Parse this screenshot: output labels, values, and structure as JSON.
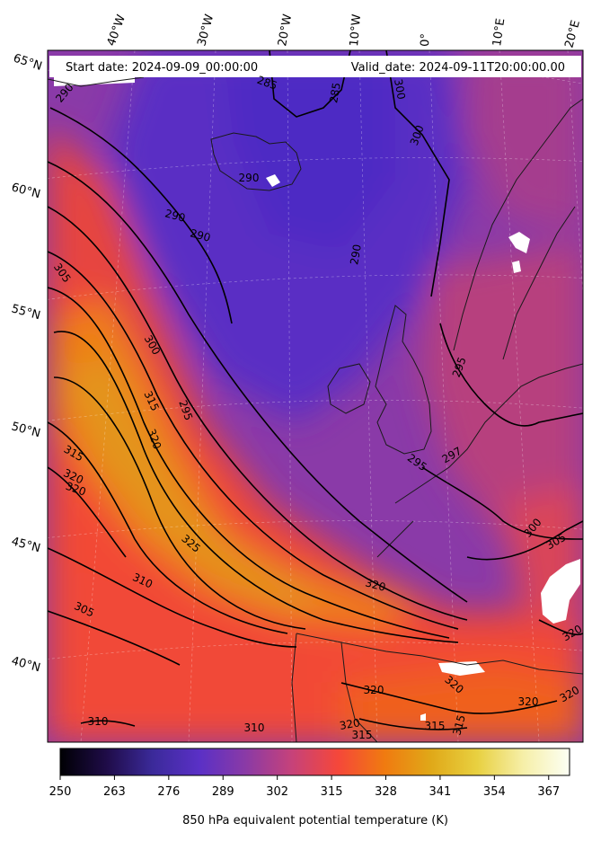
{
  "header": {
    "start_label": "Start date: 2024-09-09_00:00:00",
    "valid_label": "Valid_date: 2024-09-11T20:00:00.00"
  },
  "longitude_labels": [
    "40°W",
    "30°W",
    "20°W",
    "10°W",
    "0°",
    "10°E",
    "20°E"
  ],
  "latitude_labels": [
    "65°N",
    "60°N",
    "55°N",
    "50°N",
    "45°N",
    "40°N"
  ],
  "contour_labels": [
    "285",
    "285",
    "300",
    "300",
    "290",
    "290",
    "290",
    "290",
    "290",
    "305",
    "300",
    "315",
    "320",
    "295",
    "315",
    "320",
    "320",
    "325",
    "310",
    "305",
    "295",
    "295",
    "297",
    "300",
    "305",
    "310",
    "320",
    "320",
    "320",
    "320",
    "315",
    "320",
    "320",
    "315",
    "310",
    "315",
    "320"
  ],
  "colorbar": {
    "title": "850 hPa equivalent potential temperature (K)",
    "ticks": [
      "250",
      "263",
      "276",
      "289",
      "302",
      "315",
      "328",
      "341",
      "354",
      "367"
    ],
    "range": [
      250,
      372
    ],
    "colors": [
      "#000004",
      "#1f0c48",
      "#3b2a9a",
      "#5a30c6",
      "#8a3aa6",
      "#c6427a",
      "#f5473a",
      "#f07a10",
      "#e0a818",
      "#e8d040",
      "#f6efa8",
      "#fcfff4"
    ]
  }
}
